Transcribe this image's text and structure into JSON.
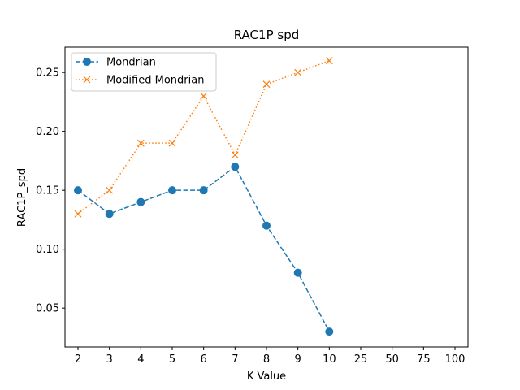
{
  "chart_data": {
    "type": "line",
    "title": "RAC1P spd",
    "xlabel": "K Value",
    "ylabel": "RAC1P_spd",
    "categories": [
      "2",
      "3",
      "4",
      "5",
      "6",
      "7",
      "8",
      "9",
      "10",
      "25",
      "50",
      "75",
      "100"
    ],
    "ylim": [
      0.017,
      0.2715
    ],
    "yticks": [
      "0.05",
      "0.10",
      "0.15",
      "0.20",
      "0.25"
    ],
    "grid": false,
    "legend_position": "top-left",
    "series": [
      {
        "name": "Mondrian",
        "color": "#1f77b4",
        "linestyle": "dashed",
        "marker": "circle",
        "values": [
          0.15,
          0.13,
          0.14,
          0.15,
          0.15,
          0.17,
          0.12,
          0.08,
          0.03,
          null,
          null,
          null,
          null
        ]
      },
      {
        "name": "Modified Mondrian",
        "color": "#ff7f0e",
        "linestyle": "dotted",
        "marker": "x",
        "values": [
          0.13,
          0.15,
          0.19,
          0.19,
          0.23,
          0.18,
          0.24,
          0.25,
          0.26,
          null,
          null,
          null,
          null
        ]
      }
    ]
  }
}
